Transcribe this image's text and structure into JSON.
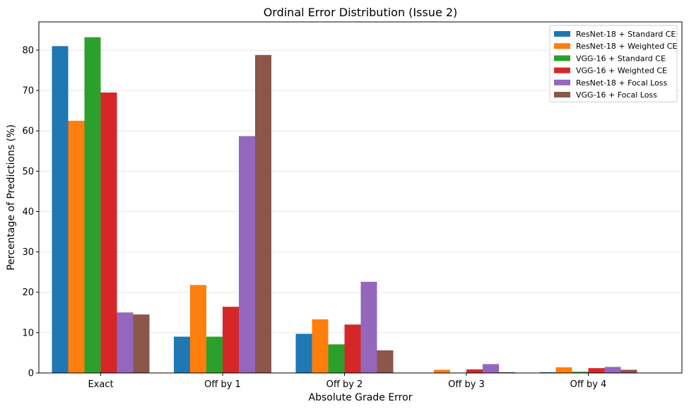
{
  "chart_data": {
    "type": "bar",
    "title": "Ordinal Error Distribution (Issue 2)",
    "xlabel": "Absolute Grade Error",
    "ylabel": "Percentage of Predictions (%)",
    "categories": [
      "Exact",
      "Off by 1",
      "Off by 2",
      "Off by 3",
      "Off by 4"
    ],
    "ylim": [
      0,
      87
    ],
    "yticks": [
      0,
      10,
      20,
      30,
      40,
      50,
      60,
      70,
      80
    ],
    "grid": "horizontal",
    "legend_position": "top-right",
    "series": [
      {
        "name": "ResNet-18 + Standard CE",
        "color": "#1f77b4",
        "values": [
          81.0,
          9.0,
          9.7,
          0.0,
          0.2
        ]
      },
      {
        "name": "ResNet-18 + Weighted CE",
        "color": "#ff7f0e",
        "values": [
          62.5,
          21.8,
          13.3,
          0.8,
          1.4
        ]
      },
      {
        "name": "VGG-16 + Standard CE",
        "color": "#2ca02c",
        "values": [
          83.2,
          9.0,
          7.1,
          0.0,
          0.3
        ]
      },
      {
        "name": "VGG-16 + Weighted CE",
        "color": "#d62728",
        "values": [
          69.5,
          16.4,
          12.0,
          0.9,
          1.2
        ]
      },
      {
        "name": "ResNet-18 + Focal Loss",
        "color": "#9467bd",
        "values": [
          15.0,
          58.7,
          22.6,
          2.2,
          1.5
        ]
      },
      {
        "name": "VGG-16 + Focal Loss",
        "color": "#8c564b",
        "values": [
          14.5,
          78.8,
          5.6,
          0.2,
          0.8
        ]
      }
    ]
  }
}
